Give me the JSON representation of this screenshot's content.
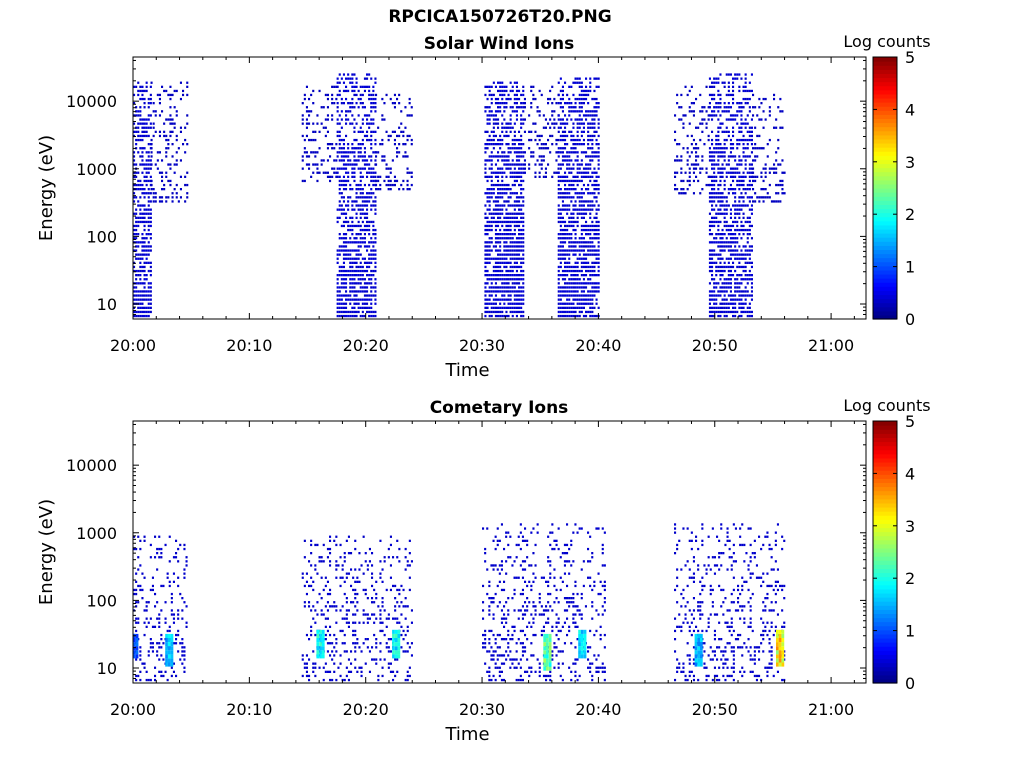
{
  "figure_title": "RPCICA150726T20.PNG",
  "chart_data": [
    {
      "type": "heatmap",
      "title": "Solar Wind Ions",
      "xlabel": "Time",
      "ylabel": "Energy (eV)",
      "x_ticks": [
        "20:00",
        "20:10",
        "20:20",
        "20:30",
        "20:40",
        "20:50",
        "21:00"
      ],
      "x_range": [
        "20:00",
        "21:03"
      ],
      "y_scale": "log",
      "y_ticks": [
        10,
        100,
        1000,
        10000
      ],
      "y_range": [
        6,
        45000
      ],
      "colorbar": {
        "label": "Log counts",
        "range": [
          0,
          5
        ],
        "ticks": [
          0,
          1,
          2,
          3,
          4,
          5
        ],
        "colormap": "jet"
      },
      "bursts": [
        {
          "start_min": 0.0,
          "end_min": 1.5,
          "emin": 6,
          "emax": 18000,
          "density": 0.75,
          "level_low": 0.35,
          "level_high": 0.45
        },
        {
          "start_min": 1.5,
          "end_min": 4.6,
          "emin": 300,
          "emax": 18000,
          "density": 0.3,
          "level_low": 0.3,
          "level_high": 0.35
        },
        {
          "start_min": 14.5,
          "end_min": 17.5,
          "emin": 600,
          "emax": 15000,
          "density": 0.3,
          "level_low": 0.3,
          "level_high": 0.35
        },
        {
          "start_min": 17.5,
          "end_min": 20.8,
          "emin": 6,
          "emax": 25000,
          "density": 0.7,
          "level_low": 0.35,
          "level_high": 0.45
        },
        {
          "start_min": 20.8,
          "end_min": 24.0,
          "emin": 500,
          "emax": 12000,
          "density": 0.25,
          "level_low": 0.3,
          "level_high": 0.35
        },
        {
          "start_min": 30.2,
          "end_min": 33.6,
          "emin": 6,
          "emax": 18000,
          "density": 0.8,
          "level_low": 0.35,
          "level_high": 0.45
        },
        {
          "start_min": 33.6,
          "end_min": 36.5,
          "emin": 700,
          "emax": 15000,
          "density": 0.3,
          "level_low": 0.3,
          "level_high": 0.35
        },
        {
          "start_min": 36.5,
          "end_min": 40.0,
          "emin": 6,
          "emax": 20000,
          "density": 0.8,
          "level_low": 0.35,
          "level_high": 0.45
        },
        {
          "start_min": 46.5,
          "end_min": 49.5,
          "emin": 400,
          "emax": 15000,
          "density": 0.3,
          "level_low": 0.3,
          "level_high": 0.35
        },
        {
          "start_min": 49.5,
          "end_min": 53.2,
          "emin": 6,
          "emax": 25000,
          "density": 0.7,
          "level_low": 0.35,
          "level_high": 0.45
        },
        {
          "start_min": 53.2,
          "end_min": 56.0,
          "emin": 300,
          "emax": 12000,
          "density": 0.3,
          "level_low": 0.3,
          "level_high": 0.35
        }
      ]
    },
    {
      "type": "heatmap",
      "title": "Cometary Ions",
      "xlabel": "Time",
      "ylabel": "Energy (eV)",
      "x_ticks": [
        "20:00",
        "20:10",
        "20:20",
        "20:30",
        "20:40",
        "20:50",
        "21:00"
      ],
      "x_range": [
        "20:00",
        "21:03"
      ],
      "y_scale": "log",
      "y_ticks": [
        10,
        100,
        1000,
        10000
      ],
      "y_range": [
        6,
        45000
      ],
      "colorbar": {
        "label": "Log counts",
        "range": [
          0,
          5
        ],
        "ticks": [
          0,
          1,
          2,
          3,
          4,
          5
        ],
        "colormap": "jet"
      },
      "bursts": [
        {
          "start_min": 0.0,
          "end_min": 4.6,
          "emin": 6,
          "emax": 800,
          "density": 0.25,
          "level_low": 0.35,
          "level_high": 0.4
        },
        {
          "start_min": 14.5,
          "end_min": 24.0,
          "emin": 6,
          "emax": 900,
          "density": 0.25,
          "level_low": 0.35,
          "level_high": 0.4
        },
        {
          "start_min": 30.0,
          "end_min": 40.5,
          "emin": 6,
          "emax": 1200,
          "density": 0.25,
          "level_low": 0.35,
          "level_high": 0.4
        },
        {
          "start_min": 46.5,
          "end_min": 56.0,
          "emin": 6,
          "emax": 1300,
          "density": 0.25,
          "level_low": 0.35,
          "level_high": 0.4
        }
      ],
      "hotspots": [
        {
          "t_min": 0.0,
          "emin": 14,
          "emax": 30,
          "level": 1.2
        },
        {
          "t_min": 3.0,
          "emin": 12,
          "emax": 30,
          "level": 1.8
        },
        {
          "t_min": 16.0,
          "emin": 14,
          "emax": 35,
          "level": 2.2
        },
        {
          "t_min": 22.5,
          "emin": 14,
          "emax": 35,
          "level": 2.1
        },
        {
          "t_min": 35.5,
          "emin": 10,
          "emax": 30,
          "level": 2.6
        },
        {
          "t_min": 38.5,
          "emin": 14,
          "emax": 35,
          "level": 2.0
        },
        {
          "t_min": 48.5,
          "emin": 12,
          "emax": 30,
          "level": 1.7
        },
        {
          "t_min": 55.5,
          "emin": 12,
          "emax": 35,
          "level": 3.6
        }
      ]
    }
  ]
}
